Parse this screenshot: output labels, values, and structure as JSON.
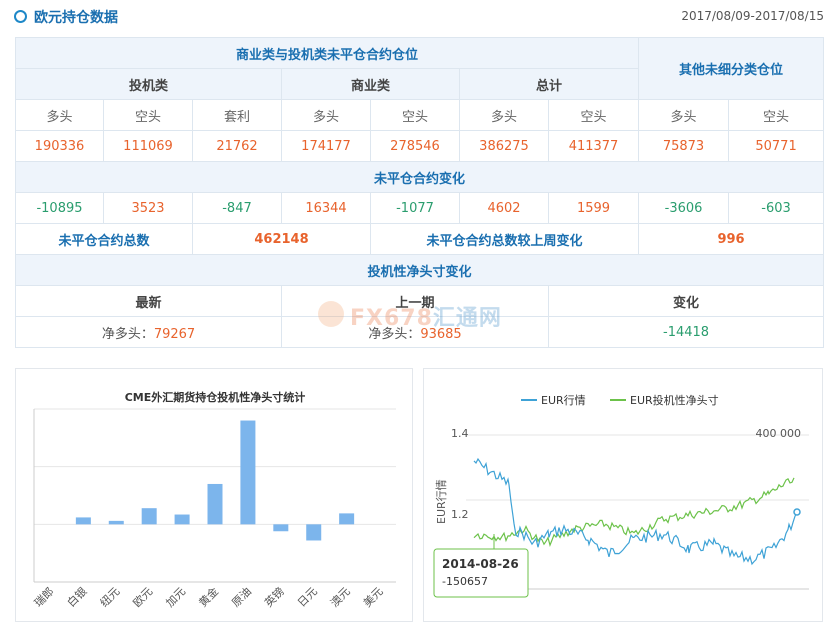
{
  "header": {
    "title": "欧元持仓数据",
    "date_range": "2017/08/09-2017/08/15"
  },
  "table": {
    "section1_title": "商业类与投机类未平仓合约仓位",
    "other_title": "其他未细分类仓位",
    "groups": {
      "spec": "投机类",
      "comm": "商业类",
      "total": "总计"
    },
    "cols": {
      "long": "多头",
      "short": "空头",
      "spread": "套利"
    },
    "positions": [
      "190336",
      "111069",
      "21762",
      "174177",
      "278546",
      "386275",
      "411377",
      "75873",
      "50771"
    ],
    "change_title": "未平仓合约变化",
    "changes": [
      "-10895",
      "3523",
      "-847",
      "16344",
      "-1077",
      "4602",
      "1599",
      "-3606",
      "-603"
    ],
    "oi_total_label": "未平仓合约总数",
    "oi_total_value": "462148",
    "oi_change_label": "未平仓合约总数较上周变化",
    "oi_change_value": "996",
    "net_title": "投机性净头寸变化",
    "net_cols": {
      "latest": "最新",
      "prev": "上一期",
      "change": "变化"
    },
    "net_prefix": "净多头：",
    "net_latest": "79267",
    "net_prev": "93685",
    "net_change": "-14418"
  },
  "watermark": {
    "latin": "FX678",
    "cn": "汇通网"
  },
  "bar_chart": {
    "title": "CME外汇期货持仓投机性净头寸统计",
    "categories": [
      "瑞郎",
      "白银",
      "纽元",
      "欧元",
      "加元",
      "黄金",
      "原油",
      "英镑",
      "日元",
      "澳元",
      "美元"
    ],
    "values": [
      0,
      12000,
      6000,
      28000,
      17000,
      70000,
      180000,
      -12000,
      -28000,
      19000,
      0
    ],
    "ylim": [
      -100000,
      200000
    ]
  },
  "line_chart": {
    "legend": [
      "EUR行情",
      "EUR投机性净头寸"
    ],
    "colors": [
      "#3ea2d6",
      "#6cc24a"
    ],
    "left_ticks": [
      "1.4",
      "1.2"
    ],
    "right_tick": "400 000",
    "ylabel_left": "EUR行情",
    "tooltip": {
      "date": "2014-08-26",
      "value": "-150657"
    }
  }
}
